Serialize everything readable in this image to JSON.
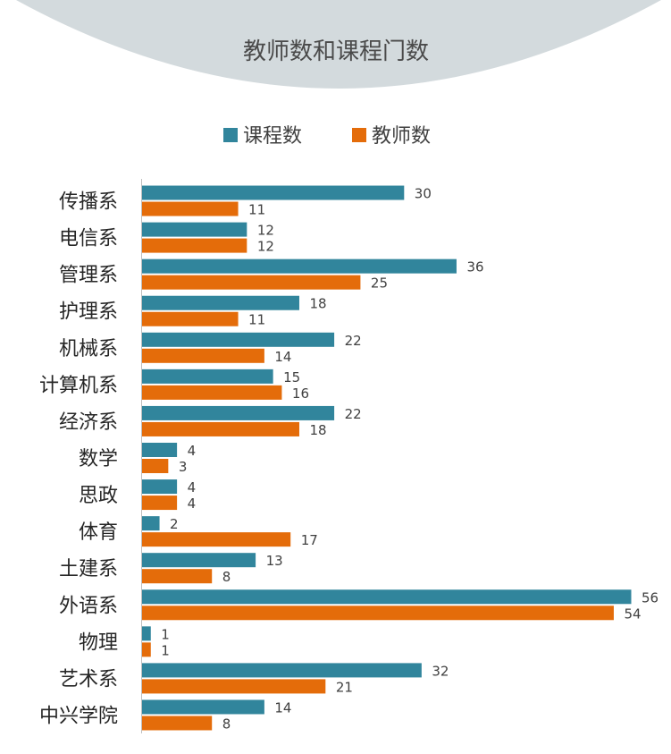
{
  "chart_data": {
    "type": "bar",
    "orientation": "horizontal",
    "title": "教师数和课程门数",
    "categories": [
      "传播系",
      "电信系",
      "管理系",
      "护理系",
      "机械系",
      "计算机系",
      "经济系",
      "数学",
      "思政",
      "体育",
      "土建系",
      "外语系",
      "物理",
      "艺术系",
      "中兴学院"
    ],
    "series": [
      {
        "name": "课程数",
        "color": "#31859c",
        "values": [
          30,
          12,
          36,
          18,
          22,
          15,
          22,
          4,
          4,
          2,
          13,
          56,
          1,
          32,
          14
        ]
      },
      {
        "name": "教师数",
        "color": "#e46c0a",
        "values": [
          11,
          12,
          25,
          11,
          14,
          16,
          18,
          3,
          4,
          17,
          8,
          54,
          1,
          21,
          8
        ]
      }
    ],
    "xlim": [
      0,
      56
    ],
    "legend_position": "top",
    "data_labels": true,
    "grid": false
  },
  "decor": {
    "title_band_color": "#d3dadd",
    "axis_color": "#bfbfbf"
  }
}
